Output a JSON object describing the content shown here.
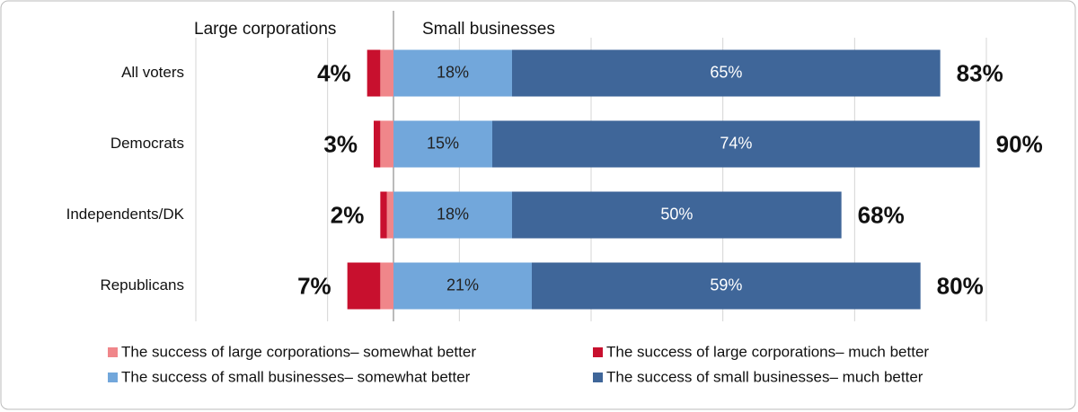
{
  "chart_data": {
    "type": "diverging-bar",
    "left_header": "Large corporations",
    "right_header": "Small businesses",
    "categories": [
      "All voters",
      "Democrats",
      "Independents/DK",
      "Republicans"
    ],
    "series": [
      {
        "name": "The success of large corporations– somewhat better",
        "color": "#f0868a",
        "side": "left",
        "values": [
          2,
          2,
          1,
          2
        ]
      },
      {
        "name": "The success of large corporations– much better",
        "color": "#c8102e",
        "side": "left",
        "values": [
          2,
          1,
          1,
          5
        ]
      },
      {
        "name": "The success of small businesses– somewhat better",
        "color": "#72a7db",
        "side": "right",
        "label_color": "#222222",
        "values": [
          18,
          15,
          18,
          21
        ],
        "value_labels": [
          "18%",
          "15%",
          "18%",
          "21%"
        ]
      },
      {
        "name": "The success of small businesses– much better",
        "color": "#3f6699",
        "side": "right",
        "label_color": "#ffffff",
        "values": [
          65,
          74,
          50,
          59
        ],
        "value_labels": [
          "65%",
          "74%",
          "50%",
          "59%"
        ]
      }
    ],
    "left_totals": [
      4,
      3,
      2,
      7
    ],
    "left_total_labels": [
      "4%",
      "3%",
      "2%",
      "7%"
    ],
    "right_totals": [
      83,
      90,
      68,
      80
    ],
    "right_total_labels": [
      "83%",
      "90%",
      "68%",
      "80%"
    ],
    "xlim": [
      -30,
      90
    ],
    "xgrid": [
      -30,
      -10,
      10,
      30,
      50,
      70,
      90
    ]
  }
}
